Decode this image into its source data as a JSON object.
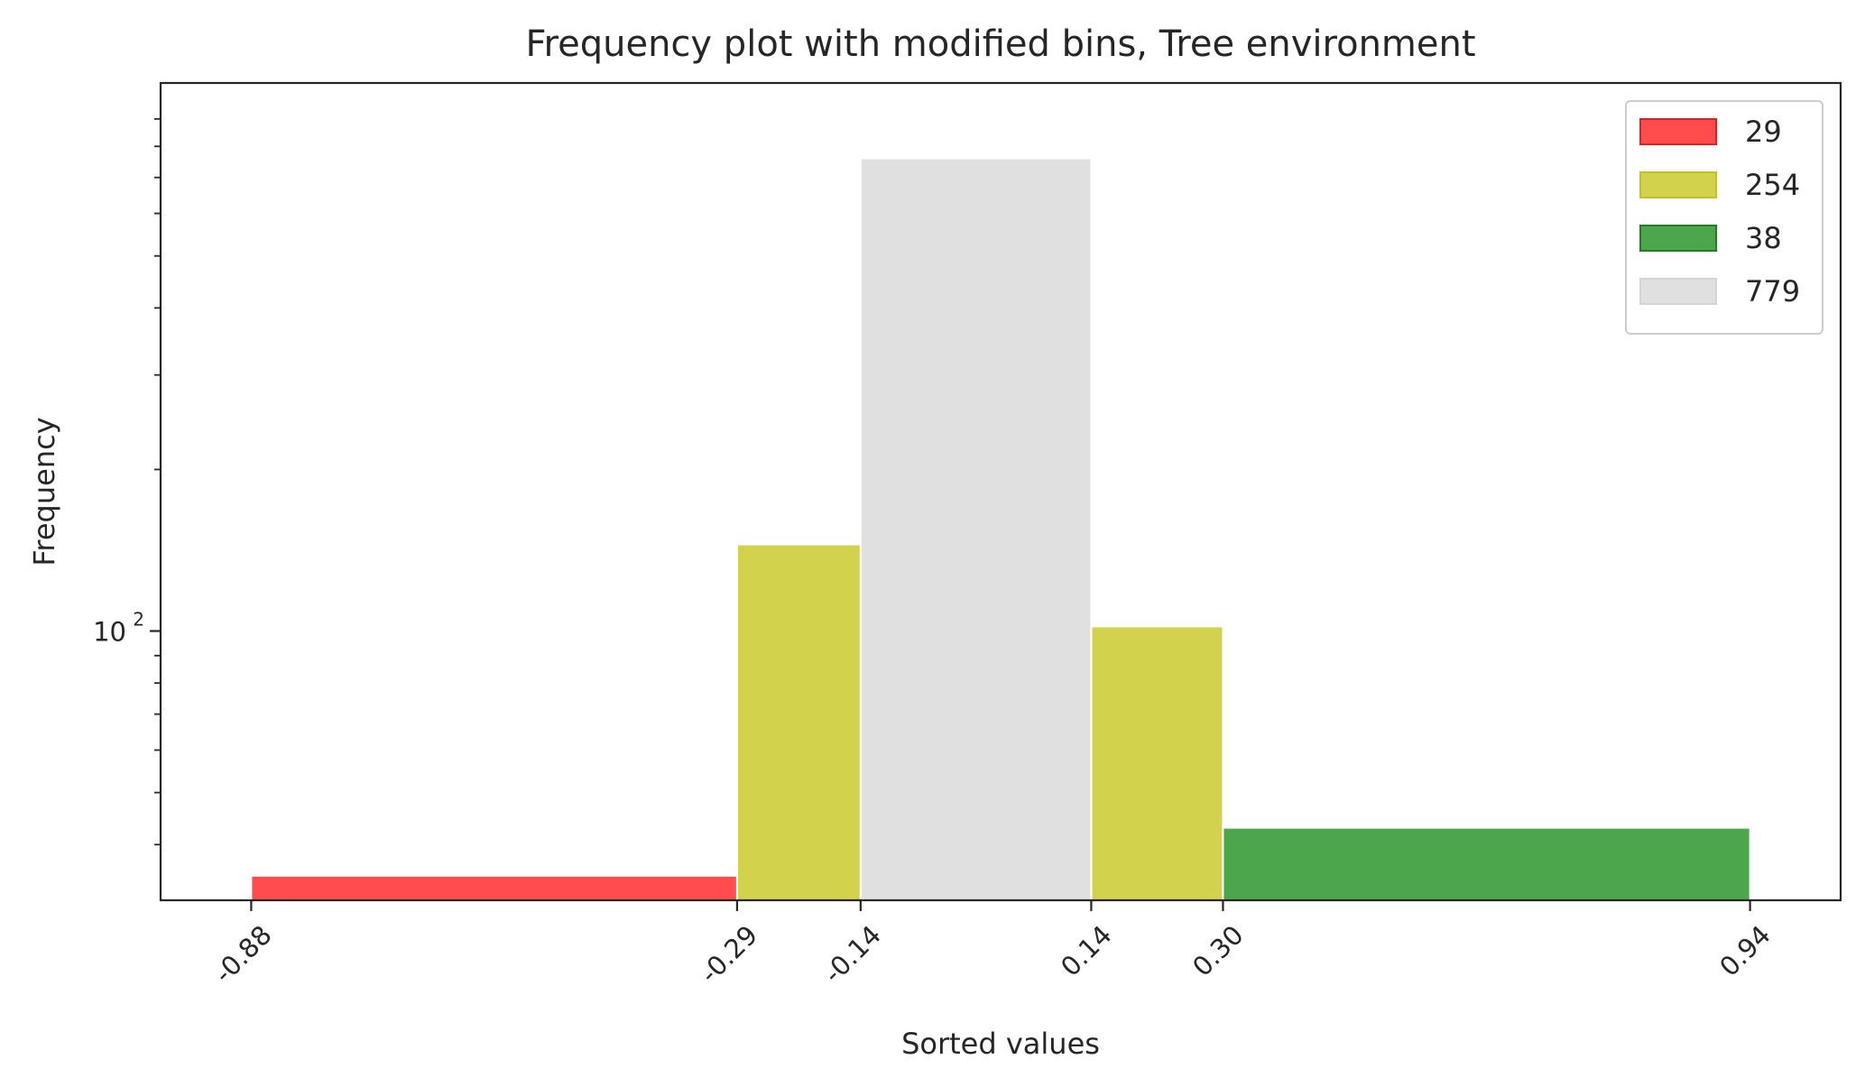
{
  "chart_data": {
    "type": "bar",
    "title": "Frequency plot with modified bins, Tree environment",
    "xlabel": "Sorted values",
    "ylabel": "Frequency",
    "yscale": "log",
    "xlim": [
      -0.99,
      1.05
    ],
    "ylim": [
      31.5,
      1050
    ],
    "x_ticks": [
      {
        "value": -0.88,
        "label": "-0.88"
      },
      {
        "value": -0.29,
        "label": "-0.29"
      },
      {
        "value": -0.14,
        "label": "-0.14"
      },
      {
        "value": 0.14,
        "label": "0.14"
      },
      {
        "value": 0.3,
        "label": "0.30"
      },
      {
        "value": 0.94,
        "label": "0.94"
      }
    ],
    "y_major_ticks": [
      {
        "value": 100,
        "base": "10",
        "exponent": "2"
      }
    ],
    "y_minor_ticks": [
      40,
      50,
      60,
      70,
      80,
      90,
      200,
      300,
      400,
      500,
      600,
      700,
      800,
      900
    ],
    "grid": false,
    "legend_position": "top-right",
    "series": [
      {
        "name": "29",
        "color": "#ff4d4d",
        "edge": "#e02020",
        "bins": [
          {
            "x0": -0.88,
            "x1": -0.29,
            "count": 35
          }
        ]
      },
      {
        "name": "254",
        "color": "#d2d24d",
        "edge": "#c2c221",
        "bins": [
          {
            "x0": -0.29,
            "x1": -0.14,
            "count": 145
          },
          {
            "x0": 0.14,
            "x1": 0.3,
            "count": 102
          }
        ]
      },
      {
        "name": "38",
        "color": "#4ca64c",
        "edge": "#208020",
        "bins": [
          {
            "x0": 0.3,
            "x1": 0.94,
            "count": 43
          }
        ]
      },
      {
        "name": "779",
        "color": "#e0e0e0",
        "edge": "#d4d4d4",
        "bins": [
          {
            "x0": -0.14,
            "x1": 0.14,
            "count": 760
          }
        ]
      }
    ]
  }
}
